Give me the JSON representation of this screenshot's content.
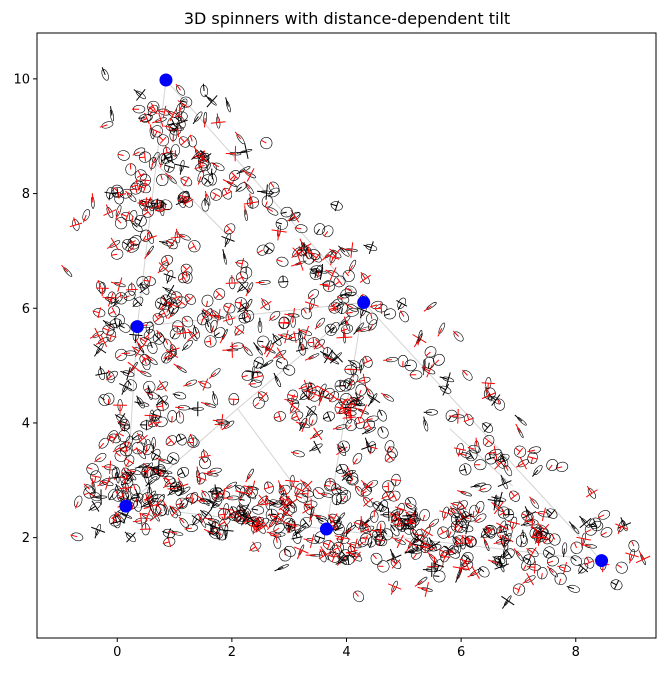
{
  "chart_data": {
    "type": "scatter",
    "title": "3D spinners with distance-dependent tilt",
    "xlabel": "",
    "ylabel": "",
    "xlim": [
      -1.4,
      9.4
    ],
    "ylim": [
      0.25,
      10.8
    ],
    "xticks": [
      0,
      2,
      4,
      6,
      8
    ],
    "yticks": [
      2,
      4,
      6,
      8,
      10
    ],
    "grid": false,
    "legend": "none",
    "colors": {
      "anchor": "#0000ff",
      "spinner_outline": "#000000",
      "spinner_axis_red": "#ff0000",
      "spinner_axis_black": "#000000",
      "network_edge": "#d3d3d3"
    },
    "anchors": [
      {
        "x": 0.85,
        "y": 9.98
      },
      {
        "x": 0.35,
        "y": 5.68
      },
      {
        "x": 4.3,
        "y": 6.1
      },
      {
        "x": 0.15,
        "y": 2.55
      },
      {
        "x": 3.65,
        "y": 2.15
      },
      {
        "x": 8.45,
        "y": 1.6
      }
    ],
    "network_edges": [
      [
        [
          0.85,
          9.98
        ],
        [
          0.35,
          5.68
        ]
      ],
      [
        [
          0.85,
          9.98
        ],
        [
          4.3,
          6.1
        ]
      ],
      [
        [
          0.35,
          5.68
        ],
        [
          4.3,
          6.1
        ]
      ],
      [
        [
          0.35,
          5.68
        ],
        [
          0.15,
          2.55
        ]
      ],
      [
        [
          4.3,
          6.1
        ],
        [
          8.45,
          1.6
        ]
      ],
      [
        [
          4.3,
          6.1
        ],
        [
          3.65,
          2.15
        ]
      ],
      [
        [
          0.15,
          2.55
        ],
        [
          3.65,
          2.15
        ]
      ],
      [
        [
          3.65,
          2.15
        ],
        [
          8.45,
          1.6
        ]
      ],
      [
        [
          0.15,
          2.55
        ],
        [
          2.1,
          4.25
        ]
      ],
      [
        [
          2.1,
          4.25
        ],
        [
          3.65,
          2.15
        ]
      ],
      [
        [
          2.1,
          4.25
        ],
        [
          4.3,
          6.1
        ]
      ],
      [
        [
          0.6,
          8.6
        ],
        [
          1.9,
          7.3
        ]
      ],
      [
        [
          5.8,
          3.9
        ],
        [
          6.9,
          2.9
        ]
      ]
    ],
    "spinner_clusters": [
      {
        "x": 1.0,
        "y": 9.0,
        "sx": 0.5,
        "sy": 0.55,
        "n": 55
      },
      {
        "x": 0.55,
        "y": 7.7,
        "sx": 0.45,
        "sy": 0.6,
        "n": 55
      },
      {
        "x": 2.3,
        "y": 8.1,
        "sx": 0.55,
        "sy": 0.45,
        "n": 30
      },
      {
        "x": 3.2,
        "y": 7.0,
        "sx": 0.55,
        "sy": 0.4,
        "n": 25
      },
      {
        "x": 0.55,
        "y": 6.0,
        "sx": 0.55,
        "sy": 0.4,
        "n": 45
      },
      {
        "x": 2.2,
        "y": 5.9,
        "sx": 0.7,
        "sy": 0.35,
        "n": 40
      },
      {
        "x": 3.9,
        "y": 6.1,
        "sx": 0.6,
        "sy": 0.5,
        "n": 55
      },
      {
        "x": 0.35,
        "y": 4.8,
        "sx": 0.35,
        "sy": 0.45,
        "n": 40
      },
      {
        "x": 1.6,
        "y": 4.7,
        "sx": 0.5,
        "sy": 0.55,
        "n": 30
      },
      {
        "x": 3.2,
        "y": 4.7,
        "sx": 0.6,
        "sy": 0.45,
        "n": 40
      },
      {
        "x": 4.1,
        "y": 4.3,
        "sx": 0.4,
        "sy": 0.5,
        "n": 30
      },
      {
        "x": 5.4,
        "y": 4.8,
        "sx": 0.5,
        "sy": 0.45,
        "n": 20
      },
      {
        "x": 6.3,
        "y": 4.0,
        "sx": 0.5,
        "sy": 0.4,
        "n": 15
      },
      {
        "x": 0.3,
        "y": 3.3,
        "sx": 0.4,
        "sy": 0.4,
        "n": 50
      },
      {
        "x": 0.4,
        "y": 2.7,
        "sx": 0.5,
        "sy": 0.3,
        "n": 50
      },
      {
        "x": 1.6,
        "y": 2.6,
        "sx": 0.55,
        "sy": 0.35,
        "n": 55
      },
      {
        "x": 2.8,
        "y": 2.3,
        "sx": 0.55,
        "sy": 0.35,
        "n": 50
      },
      {
        "x": 3.9,
        "y": 2.2,
        "sx": 0.55,
        "sy": 0.4,
        "n": 55
      },
      {
        "x": 5.0,
        "y": 2.0,
        "sx": 0.5,
        "sy": 0.35,
        "n": 50
      },
      {
        "x": 6.0,
        "y": 2.0,
        "sx": 0.5,
        "sy": 0.35,
        "n": 50
      },
      {
        "x": 7.0,
        "y": 2.0,
        "sx": 0.55,
        "sy": 0.5,
        "n": 45
      },
      {
        "x": 8.0,
        "y": 1.9,
        "sx": 0.5,
        "sy": 0.5,
        "n": 35
      },
      {
        "x": 6.8,
        "y": 3.1,
        "sx": 0.5,
        "sy": 0.35,
        "n": 20
      },
      {
        "x": 4.4,
        "y": 3.3,
        "sx": 0.4,
        "sy": 0.4,
        "n": 20
      }
    ]
  }
}
